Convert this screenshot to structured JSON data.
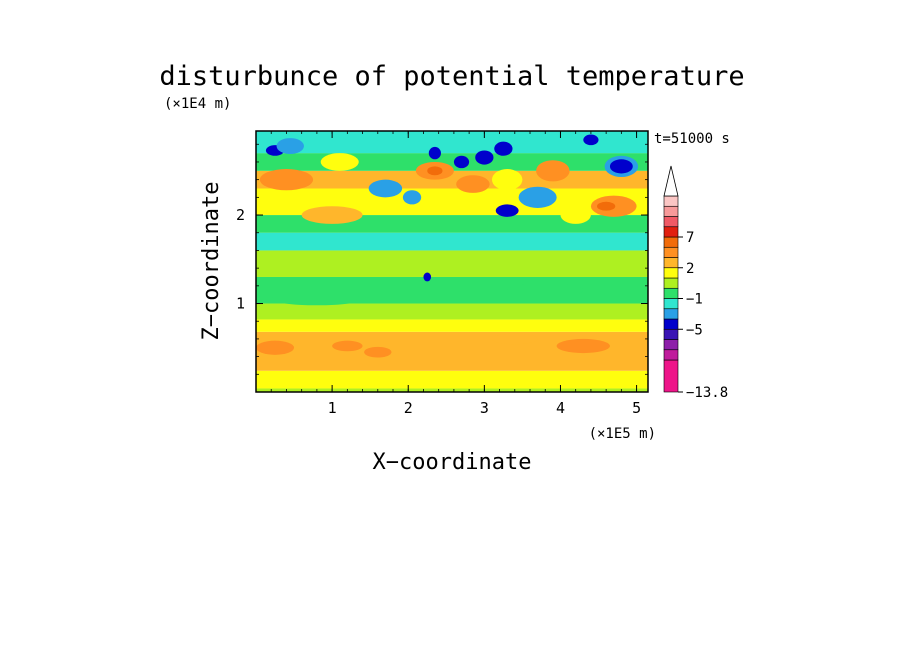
{
  "chart_data": {
    "type": "heatmap",
    "title": "disturbunce of potential temperature",
    "time_label": "t=51000 s",
    "xlabel": "X−coordinate",
    "ylabel": "Z−coordinate",
    "x_unit": "(×1E5 m)",
    "y_unit": "(×1E4 m)",
    "xlim": [
      0,
      5.15
    ],
    "ylim": [
      0,
      2.95
    ],
    "x_ticks": [
      "1",
      "2",
      "3",
      "4",
      "5"
    ],
    "y_ticks": [
      "1",
      "2"
    ],
    "colorbar": {
      "labels": [
        "7",
        "2",
        "−1",
        "−5",
        "−13.8"
      ],
      "colors": [
        "#ee1589",
        "#c01c9c",
        "#8d1fa9",
        "#3a14b4",
        "#0000cc",
        "#2aa0e6",
        "#30e6cf",
        "#2ee06a",
        "#aef021",
        "#fffe0e",
        "#ffb62b",
        "#ff9022",
        "#f26c0a",
        "#e12010",
        "#f05a66",
        "#f79a9a",
        "#fbc6c4"
      ]
    },
    "bands": [
      {
        "z_bottom": 0.0,
        "z_top": 0.04,
        "color": "#aef021"
      },
      {
        "z_bottom": 0.04,
        "z_top": 0.24,
        "color": "#fffe0e"
      },
      {
        "z_bottom": 0.24,
        "z_top": 0.68,
        "color": "#ffb62b"
      },
      {
        "z_bottom": 0.68,
        "z_top": 0.82,
        "color": "#fffe0e"
      },
      {
        "z_bottom": 0.82,
        "z_top": 1.0,
        "color": "#aef021"
      },
      {
        "z_bottom": 1.0,
        "z_top": 1.3,
        "color": "#2ee06a"
      },
      {
        "z_bottom": 1.3,
        "z_top": 1.6,
        "color": "#aef021"
      },
      {
        "z_bottom": 1.6,
        "z_top": 1.8,
        "color": "#30e6cf"
      },
      {
        "z_bottom": 1.8,
        "z_top": 2.0,
        "color": "#2ee06a"
      },
      {
        "z_bottom": 2.0,
        "z_top": 2.3,
        "color": "#fffe0e"
      },
      {
        "z_bottom": 2.3,
        "z_top": 2.5,
        "color": "#ffb62b"
      },
      {
        "z_bottom": 2.5,
        "z_top": 2.7,
        "color": "#2ee06a"
      },
      {
        "z_bottom": 2.7,
        "z_top": 2.95,
        "color": "#30e6cf"
      }
    ],
    "features": [
      {
        "x": 0.25,
        "z": 2.73,
        "rx": 0.12,
        "rz": 0.06,
        "color": "#0000cc"
      },
      {
        "x": 0.45,
        "z": 2.78,
        "rx": 0.18,
        "rz": 0.09,
        "color": "#2aa0e6"
      },
      {
        "x": 0.4,
        "z": 2.4,
        "rx": 0.35,
        "rz": 0.12,
        "color": "#ff9022"
      },
      {
        "x": 1.1,
        "z": 2.6,
        "rx": 0.25,
        "rz": 0.1,
        "color": "#fffe0e"
      },
      {
        "x": 1.7,
        "z": 2.3,
        "rx": 0.22,
        "rz": 0.1,
        "color": "#2aa0e6"
      },
      {
        "x": 2.05,
        "z": 2.2,
        "rx": 0.12,
        "rz": 0.08,
        "color": "#2aa0e6"
      },
      {
        "x": 2.35,
        "z": 2.5,
        "rx": 0.25,
        "rz": 0.1,
        "color": "#ff9022"
      },
      {
        "x": 2.35,
        "z": 2.5,
        "rx": 0.1,
        "rz": 0.05,
        "color": "#f26c0a"
      },
      {
        "x": 2.35,
        "z": 2.7,
        "rx": 0.08,
        "rz": 0.07,
        "color": "#0000cc"
      },
      {
        "x": 2.7,
        "z": 2.6,
        "rx": 0.1,
        "rz": 0.07,
        "color": "#0000cc"
      },
      {
        "x": 3.0,
        "z": 2.65,
        "rx": 0.12,
        "rz": 0.08,
        "color": "#0000cc"
      },
      {
        "x": 3.25,
        "z": 2.75,
        "rx": 0.12,
        "rz": 0.08,
        "color": "#0000cc"
      },
      {
        "x": 2.85,
        "z": 2.35,
        "rx": 0.22,
        "rz": 0.1,
        "color": "#ff9022"
      },
      {
        "x": 3.3,
        "z": 2.4,
        "rx": 0.2,
        "rz": 0.12,
        "color": "#fffe0e"
      },
      {
        "x": 3.3,
        "z": 2.05,
        "rx": 0.15,
        "rz": 0.07,
        "color": "#0000cc"
      },
      {
        "x": 3.7,
        "z": 2.2,
        "rx": 0.25,
        "rz": 0.12,
        "color": "#2aa0e6"
      },
      {
        "x": 3.9,
        "z": 2.5,
        "rx": 0.22,
        "rz": 0.12,
        "color": "#ff9022"
      },
      {
        "x": 4.4,
        "z": 2.85,
        "rx": 0.1,
        "rz": 0.06,
        "color": "#0000cc"
      },
      {
        "x": 4.8,
        "z": 2.55,
        "rx": 0.22,
        "rz": 0.12,
        "color": "#2aa0e6"
      },
      {
        "x": 4.8,
        "z": 2.55,
        "rx": 0.15,
        "rz": 0.08,
        "color": "#0000cc"
      },
      {
        "x": 4.7,
        "z": 2.1,
        "rx": 0.3,
        "rz": 0.12,
        "color": "#ff9022"
      },
      {
        "x": 4.6,
        "z": 2.1,
        "rx": 0.12,
        "rz": 0.05,
        "color": "#f26c0a"
      },
      {
        "x": 4.2,
        "z": 2.0,
        "rx": 0.2,
        "rz": 0.1,
        "color": "#fffe0e"
      },
      {
        "x": 1.0,
        "z": 2.0,
        "rx": 0.4,
        "rz": 0.1,
        "color": "#ffb62b"
      },
      {
        "x": 2.25,
        "z": 1.3,
        "rx": 0.05,
        "rz": 0.05,
        "color": "#0000cc"
      },
      {
        "x": 0.8,
        "z": 1.05,
        "rx": 0.6,
        "rz": 0.07,
        "color": "#2ee06a"
      },
      {
        "x": 3.8,
        "z": 1.15,
        "rx": 0.5,
        "rz": 0.08,
        "color": "#2ee06a"
      },
      {
        "x": 0.25,
        "z": 0.5,
        "rx": 0.25,
        "rz": 0.08,
        "color": "#ff9022"
      },
      {
        "x": 1.2,
        "z": 0.52,
        "rx": 0.2,
        "rz": 0.06,
        "color": "#ff9022"
      },
      {
        "x": 1.6,
        "z": 0.45,
        "rx": 0.18,
        "rz": 0.06,
        "color": "#ff9022"
      },
      {
        "x": 4.3,
        "z": 0.52,
        "rx": 0.35,
        "rz": 0.08,
        "color": "#ff9022"
      },
      {
        "x": 3.4,
        "z": 0.6,
        "rx": 0.3,
        "rz": 0.06,
        "color": "#ffb62b"
      }
    ]
  }
}
